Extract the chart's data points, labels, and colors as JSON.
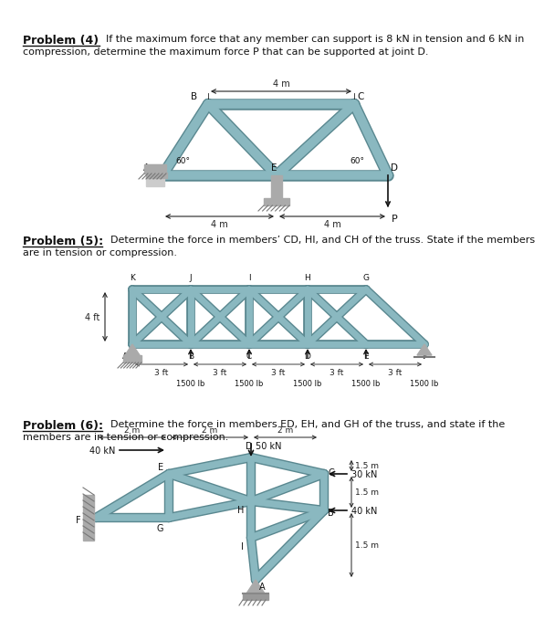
{
  "bg_color": "#ffffff",
  "page_width": 5.4,
  "page_height": 6.71,
  "truss_color": "#8ab8c0",
  "truss_color_dark": "#5a8890",
  "text_color": "#111111",
  "dim_color": "#222222",
  "p4_text1": "Problem (4)",
  "p4_text2": "  If the maximum force that any member can support is 8 kN in tension and 6 kN in",
  "p4_text3": "compression, determine the maximum force P that can be supported at joint D.",
  "p5_label": "Problem (5):",
  "p5_text2": "  Determine the force in members’ CD, HI, and CH of the truss. State if the members",
  "p5_text3": "are in tension or compression.",
  "p6_label": "Problem (6):",
  "p6_text2": "  Determine the force in members ED, EH, and GH of the truss, and state if the",
  "p6_text3": "members are in tension or compression."
}
